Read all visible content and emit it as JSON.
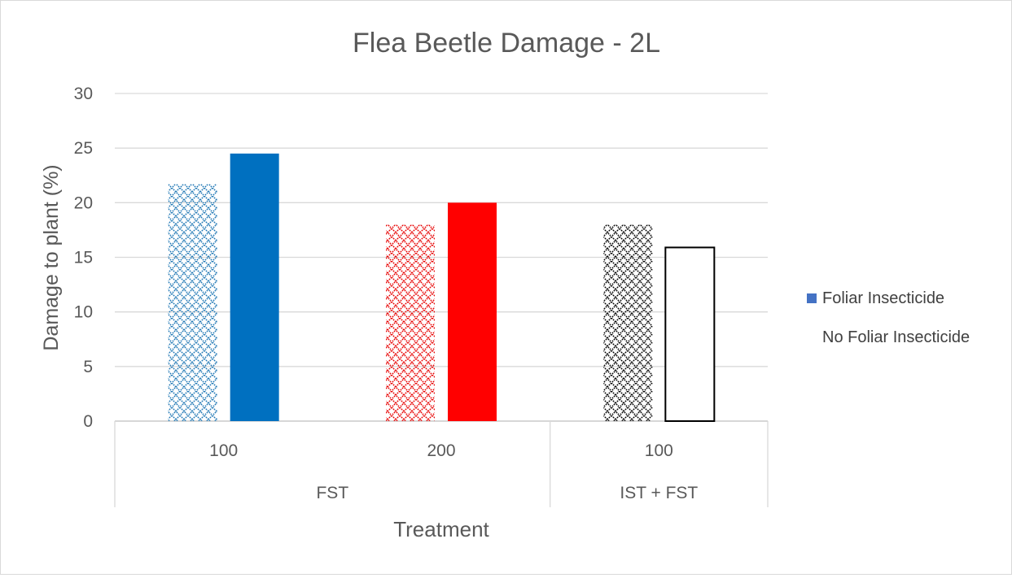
{
  "chart_data": {
    "type": "bar",
    "title": "Flea Beetle Damage - 2L",
    "xlabel": "Treatment",
    "ylabel": "Damage to plant (%)",
    "ylim": [
      0,
      30
    ],
    "yticks": [
      0,
      5,
      10,
      15,
      20,
      25,
      30
    ],
    "grid": true,
    "legend_position": "right",
    "categories": [
      {
        "label": "100",
        "group": "FST"
      },
      {
        "label": "200",
        "group": "FST"
      },
      {
        "label": "100",
        "group": "IST + FST"
      }
    ],
    "groups": [
      "FST",
      "IST + FST"
    ],
    "series": [
      {
        "name": "No Foliar Insecticide",
        "values": [
          21.7,
          18.0,
          18.0
        ],
        "colors": [
          "#1f77b4",
          "#e60000",
          "#000000"
        ],
        "fill": "crosshatch"
      },
      {
        "name": "Foliar Insecticide",
        "values": [
          24.5,
          20.0,
          15.9
        ],
        "colors": [
          "#0070c0",
          "#ff0000",
          "#ffffff"
        ],
        "fill": "solid"
      }
    ],
    "legend": [
      {
        "label": "Foliar Insecticide",
        "color": "#4472c4"
      },
      {
        "label": "No Foliar Insecticide",
        "color": "#ffffff"
      }
    ]
  }
}
